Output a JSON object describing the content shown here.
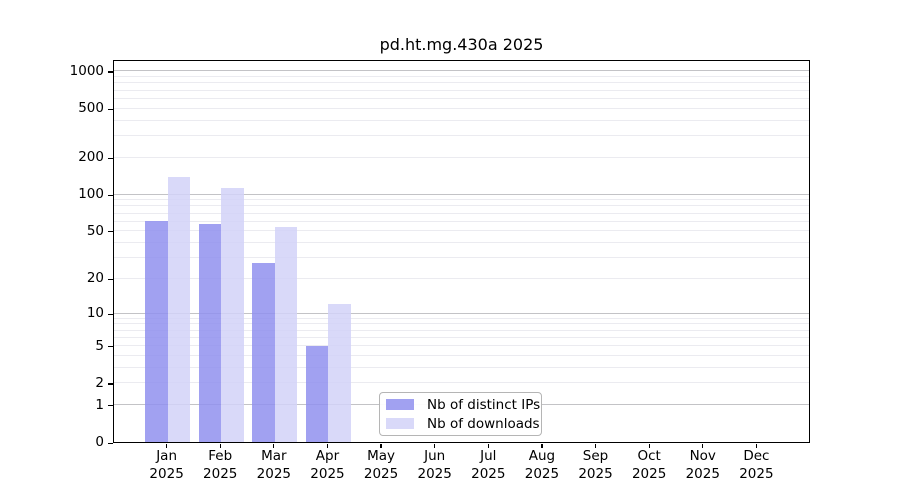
{
  "chart_data": {
    "type": "bar",
    "title": "pd.ht.mg.430a 2025",
    "categories": [
      "Jan",
      "Feb",
      "Mar",
      "Apr",
      "May",
      "Jun",
      "Jul",
      "Aug",
      "Sep",
      "Oct",
      "Nov",
      "Dec"
    ],
    "x_year": "2025",
    "series": [
      {
        "name": "Nb of distinct IPs",
        "color": "#9191ee",
        "values": [
          60,
          57,
          27,
          5,
          0,
          0,
          0,
          0,
          0,
          0,
          0,
          0
        ]
      },
      {
        "name": "Nb of downloads",
        "color": "#d2d2f8",
        "values": [
          137,
          113,
          54,
          12,
          0,
          0,
          0,
          0,
          0,
          0,
          0,
          0
        ]
      }
    ],
    "y_scale": "log10(value+1)",
    "y_ticks": [
      0,
      1,
      2,
      5,
      10,
      20,
      50,
      100,
      200,
      500,
      1000
    ],
    "ylim": [
      0,
      1250
    ],
    "grid": "horizontal, major at decades, minor at 2-9 per decade",
    "legend_position": "lower center, inside axes",
    "bar_opacity": 0.85,
    "colors": {
      "grid_major": "#c3c3c6",
      "grid_minor": "#ebebf0",
      "axis": "#000000"
    }
  }
}
